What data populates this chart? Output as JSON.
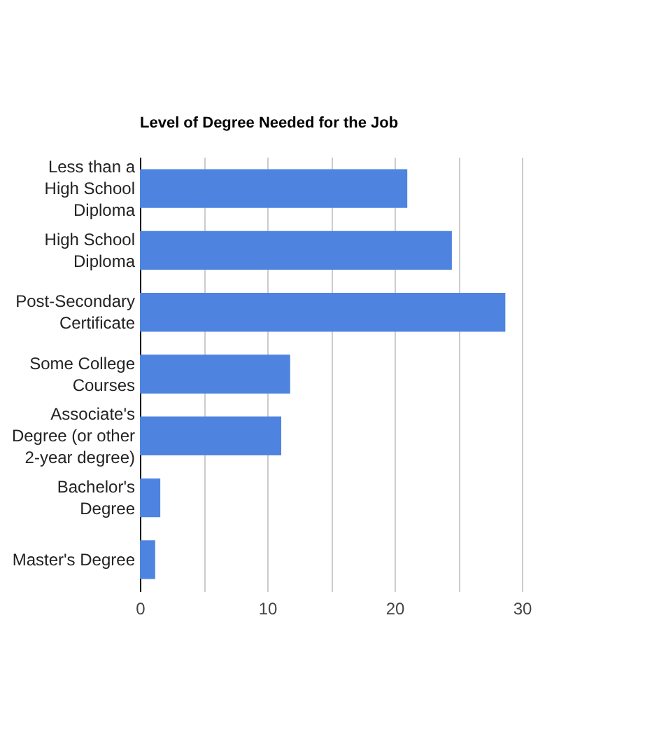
{
  "chart_data": {
    "type": "bar",
    "orientation": "horizontal",
    "title": "Level of Degree Needed for the Job",
    "categories": [
      "Less than a High School Diploma",
      "High School Diploma",
      "Post-Secondary Certificate",
      "Some College Courses",
      "Associate's Degree (or other 2-year degree)",
      "Bachelor's Degree",
      "Master's Degree"
    ],
    "values": [
      21.0,
      24.5,
      28.7,
      11.8,
      11.1,
      1.6,
      1.2
    ],
    "color": "#4e84e0",
    "xlim": [
      0,
      30
    ],
    "xticks": [
      0,
      {
        "value": 5,
        "label": null
      },
      10,
      {
        "value": 15,
        "label": null
      },
      20,
      {
        "value": 25,
        "label": null
      },
      30
    ],
    "grid": "x"
  }
}
